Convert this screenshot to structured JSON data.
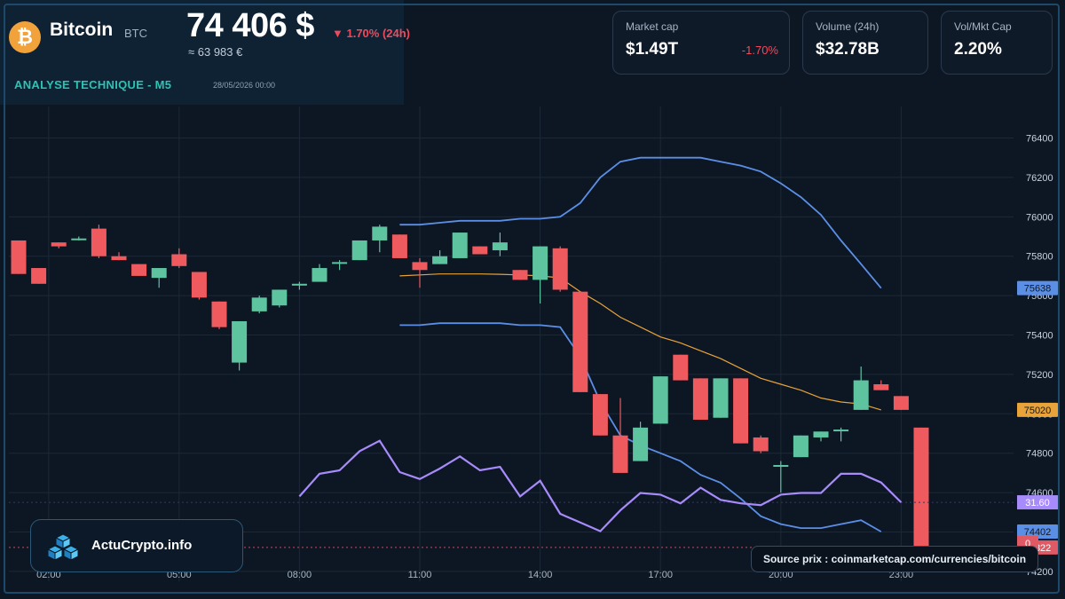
{
  "header": {
    "coin_icon": "bitcoin-icon",
    "coin_icon_glyph": "₿",
    "coin_name": "Bitcoin",
    "coin_symbol": "BTC",
    "price": "74 406 $",
    "price_eur": "≈ 63 983 €",
    "change_24h": "▼ 1.70% (24h)",
    "analysis_title": "ANALYSE TECHNIQUE - M5",
    "analysis_date": "28/05/2026 00:00"
  },
  "stats": [
    {
      "label": "Market cap",
      "value": "$1.49T",
      "change": "-1.70%"
    },
    {
      "label": "Volume (24h)",
      "value": "$32.78B",
      "change": ""
    },
    {
      "label": "Vol/Mkt Cap",
      "value": "2.20%",
      "change": ""
    }
  ],
  "brand": {
    "name": "ActuCrypto.info",
    "icon": "cubes-logo-icon"
  },
  "source": "Source prix : coinmarketcap.com/currencies/bitcoin",
  "colors": {
    "background": "#0d1724",
    "up": "#5ec4a0",
    "down": "#ef5a5e",
    "bollinger": "#5b8fe6",
    "sma": "#e8a33a",
    "rsi": "#a78bfa",
    "grid": "#1c2836",
    "accent": "#2ac4b4"
  },
  "chart_data": {
    "type": "candlestick",
    "title": "ANALYSE TECHNIQUE - M5",
    "x_ticks": [
      "02:00",
      "05:00",
      "08:00",
      "11:00",
      "14:00",
      "17:00",
      "20:00",
      "23:00"
    ],
    "x_tick_indices": [
      1.5,
      8,
      14,
      20,
      26,
      32,
      38,
      44
    ],
    "y_ticks": [
      74200,
      74400,
      74600,
      74800,
      75000,
      75200,
      75400,
      75600,
      75800,
      76000,
      76200,
      76400
    ],
    "ylim": [
      74150,
      76560
    ],
    "candles": [
      {
        "o": 75880,
        "h": 75880,
        "l": 75710,
        "c": 75710
      },
      {
        "o": 75740,
        "h": 75740,
        "l": 75660,
        "c": 75660
      },
      {
        "o": 75870,
        "h": 75870,
        "l": 75840,
        "c": 75850
      },
      {
        "o": 75890,
        "h": 75900,
        "l": 75880,
        "c": 75890
      },
      {
        "o": 75940,
        "h": 75960,
        "l": 75790,
        "c": 75800
      },
      {
        "o": 75800,
        "h": 75820,
        "l": 75780,
        "c": 75780
      },
      {
        "o": 75760,
        "h": 75760,
        "l": 75700,
        "c": 75700
      },
      {
        "o": 75690,
        "h": 75740,
        "l": 75640,
        "c": 75740
      },
      {
        "o": 75810,
        "h": 75840,
        "l": 75740,
        "c": 75750
      },
      {
        "o": 75720,
        "h": 75720,
        "l": 75580,
        "c": 75590
      },
      {
        "o": 75570,
        "h": 75570,
        "l": 75430,
        "c": 75440
      },
      {
        "o": 75260,
        "h": 75470,
        "l": 75220,
        "c": 75470
      },
      {
        "o": 75520,
        "h": 75600,
        "l": 75510,
        "c": 75590
      },
      {
        "o": 75550,
        "h": 75630,
        "l": 75540,
        "c": 75630
      },
      {
        "o": 75660,
        "h": 75670,
        "l": 75630,
        "c": 75660
      },
      {
        "o": 75670,
        "h": 75760,
        "l": 75670,
        "c": 75740
      },
      {
        "o": 75770,
        "h": 75780,
        "l": 75730,
        "c": 75770
      },
      {
        "o": 75780,
        "h": 75880,
        "l": 75780,
        "c": 75880
      },
      {
        "o": 75880,
        "h": 75960,
        "l": 75820,
        "c": 75950
      },
      {
        "o": 75910,
        "h": 75910,
        "l": 75790,
        "c": 75790
      },
      {
        "o": 75770,
        "h": 75790,
        "l": 75640,
        "c": 75730
      },
      {
        "o": 75760,
        "h": 75830,
        "l": 75760,
        "c": 75800
      },
      {
        "o": 75790,
        "h": 75920,
        "l": 75790,
        "c": 75920
      },
      {
        "o": 75850,
        "h": 75850,
        "l": 75810,
        "c": 75810
      },
      {
        "o": 75830,
        "h": 75920,
        "l": 75800,
        "c": 75870
      },
      {
        "o": 75730,
        "h": 75730,
        "l": 75680,
        "c": 75680
      },
      {
        "o": 75680,
        "h": 75850,
        "l": 75560,
        "c": 75850
      },
      {
        "o": 75840,
        "h": 75850,
        "l": 75620,
        "c": 75630
      },
      {
        "o": 75620,
        "h": 75620,
        "l": 75110,
        "c": 75110
      },
      {
        "o": 75100,
        "h": 75100,
        "l": 74890,
        "c": 74890
      },
      {
        "o": 74890,
        "h": 75080,
        "l": 74700,
        "c": 74700
      },
      {
        "o": 74760,
        "h": 74960,
        "l": 74760,
        "c": 74930
      },
      {
        "o": 74950,
        "h": 75190,
        "l": 74950,
        "c": 75190
      },
      {
        "o": 75300,
        "h": 75300,
        "l": 75170,
        "c": 75170
      },
      {
        "o": 75180,
        "h": 75180,
        "l": 74970,
        "c": 74970
      },
      {
        "o": 74980,
        "h": 75180,
        "l": 74980,
        "c": 75180
      },
      {
        "o": 75180,
        "h": 75180,
        "l": 74850,
        "c": 74850
      },
      {
        "o": 74880,
        "h": 74890,
        "l": 74800,
        "c": 74810
      },
      {
        "o": 74740,
        "h": 74760,
        "l": 74600,
        "c": 74740
      },
      {
        "o": 74780,
        "h": 74890,
        "l": 74780,
        "c": 74890
      },
      {
        "o": 74880,
        "h": 74910,
        "l": 74860,
        "c": 74910
      },
      {
        "o": 74920,
        "h": 74930,
        "l": 74860,
        "c": 74920
      },
      {
        "o": 75020,
        "h": 75240,
        "l": 75020,
        "c": 75170
      },
      {
        "o": 75150,
        "h": 75170,
        "l": 75120,
        "c": 75120
      },
      {
        "o": 75090,
        "h": 75090,
        "l": 75020,
        "c": 75020
      },
      {
        "o": 74930,
        "h": 74930,
        "l": 74300,
        "c": 74322
      }
    ],
    "bollinger_upper": {
      "start": 19,
      "values": [
        75960,
        75960,
        75970,
        75980,
        75980,
        75980,
        75990,
        75990,
        76000,
        76070,
        76200,
        76280,
        76300,
        76300,
        76300,
        76300,
        76280,
        76260,
        76230,
        76170,
        76100,
        76010,
        75880,
        75760,
        75638
      ]
    },
    "bollinger_lower": {
      "start": 19,
      "values": [
        75450,
        75450,
        75460,
        75460,
        75460,
        75460,
        75450,
        75450,
        75440,
        75290,
        75060,
        74890,
        74840,
        74800,
        74760,
        74690,
        74650,
        74570,
        74480,
        74440,
        74420,
        74420,
        74440,
        74460,
        74402
      ]
    },
    "sma": {
      "start": 19,
      "values": [
        75700,
        75705,
        75710,
        75710,
        75710,
        75708,
        75705,
        75700,
        75690,
        75620,
        75560,
        75490,
        75440,
        75390,
        75360,
        75320,
        75280,
        75230,
        75180,
        75150,
        75120,
        75080,
        75060,
        75050,
        75020
      ]
    },
    "rsi": {
      "start": 14,
      "values": [
        35,
        48,
        50,
        61,
        67,
        49,
        45,
        51,
        58,
        50,
        52,
        35,
        44,
        25,
        20,
        15,
        27,
        37,
        36,
        31,
        40,
        33,
        31,
        30,
        36,
        37,
        37,
        48,
        48,
        43,
        31.6
      ]
    },
    "last_price_label": "74322",
    "upper_label": "75638",
    "sma_label": "75020",
    "lower_label": "74402",
    "rsi_label": "31.60",
    "rsi_zero_label": "0"
  }
}
